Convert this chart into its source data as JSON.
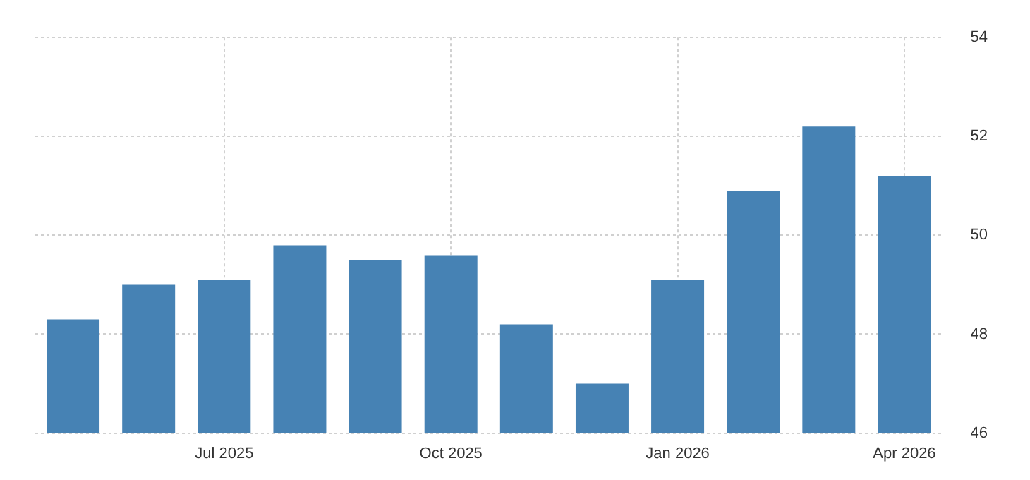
{
  "chart_data": {
    "type": "bar",
    "categories": [
      null,
      null,
      "Jul 2025",
      null,
      null,
      "Oct 2025",
      null,
      null,
      "Jan 2026",
      null,
      null,
      "Apr 2026"
    ],
    "values": [
      48.3,
      49.0,
      49.1,
      49.8,
      49.5,
      49.6,
      48.2,
      47.0,
      49.1,
      50.9,
      52.2,
      51.2
    ],
    "color": "#4682b4",
    "ylim": [
      46,
      54
    ],
    "yticks": [
      46,
      48,
      50,
      52,
      54
    ],
    "grid": true
  }
}
